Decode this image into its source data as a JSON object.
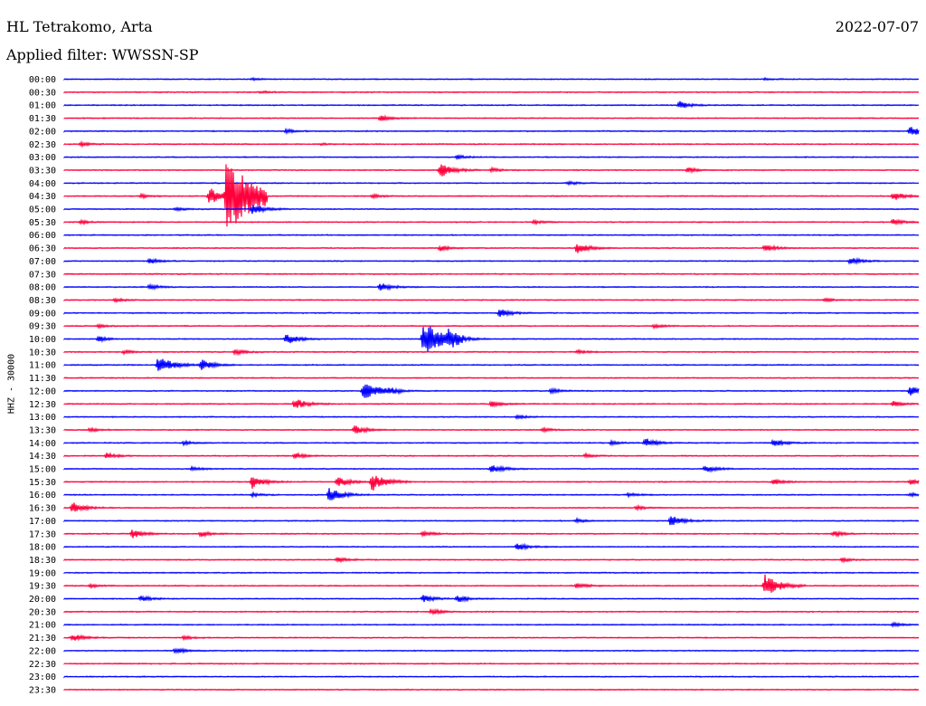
{
  "header": {
    "station": "HL Tetrakomo, Arta",
    "date": "2022-07-07",
    "filter": "Applied filter: WWSSN-SP"
  },
  "ylabel": "HHZ - 30000",
  "colors": {
    "odd": "#0000ff",
    "even": "#ff003c",
    "text": "#000000"
  },
  "chart_data": {
    "type": "line",
    "title": "",
    "xlabel": "",
    "ylabel": "HHZ - 30000",
    "grid": false,
    "traces": [
      {
        "label": "00:00",
        "events": [
          [
            0.22,
            1
          ],
          [
            0.82,
            1
          ]
        ]
      },
      {
        "label": "00:30",
        "events": [
          [
            0.23,
            1.2
          ]
        ]
      },
      {
        "label": "01:00",
        "events": [
          [
            0.72,
            4
          ]
        ]
      },
      {
        "label": "01:30",
        "events": [
          [
            0.37,
            3
          ]
        ]
      },
      {
        "label": "02:00",
        "events": [
          [
            0.26,
            2
          ],
          [
            0.99,
            6
          ]
        ]
      },
      {
        "label": "02:30",
        "events": [
          [
            0.02,
            2
          ],
          [
            0.3,
            1
          ]
        ]
      },
      {
        "label": "03:00",
        "events": [
          [
            0.46,
            2
          ]
        ]
      },
      {
        "label": "03:30",
        "events": [
          [
            0.44,
            8
          ],
          [
            0.5,
            2
          ],
          [
            0.73,
            3
          ]
        ]
      },
      {
        "label": "04:00",
        "events": [
          [
            0.59,
            2
          ]
        ]
      },
      {
        "label": "04:30",
        "events": [
          [
            0.09,
            2
          ],
          [
            0.17,
            10
          ],
          [
            0.19,
            40
          ],
          [
            0.36,
            2
          ],
          [
            0.97,
            5
          ]
        ]
      },
      {
        "label": "05:00",
        "events": [
          [
            0.13,
            2
          ],
          [
            0.22,
            6
          ]
        ]
      },
      {
        "label": "05:30",
        "events": [
          [
            0.02,
            2
          ],
          [
            0.55,
            2
          ],
          [
            0.97,
            3
          ]
        ]
      },
      {
        "label": "06:00",
        "events": []
      },
      {
        "label": "06:30",
        "events": [
          [
            0.44,
            3
          ],
          [
            0.6,
            6
          ],
          [
            0.82,
            4
          ]
        ]
      },
      {
        "label": "07:00",
        "events": [
          [
            0.1,
            3
          ],
          [
            0.92,
            4
          ]
        ]
      },
      {
        "label": "07:30",
        "events": []
      },
      {
        "label": "08:00",
        "events": [
          [
            0.1,
            3
          ],
          [
            0.37,
            5
          ]
        ]
      },
      {
        "label": "08:30",
        "events": [
          [
            0.06,
            2
          ],
          [
            0.89,
            2
          ]
        ]
      },
      {
        "label": "09:00",
        "events": [
          [
            0.51,
            5
          ]
        ]
      },
      {
        "label": "09:30",
        "events": [
          [
            0.04,
            2
          ],
          [
            0.69,
            2
          ]
        ]
      },
      {
        "label": "10:00",
        "events": [
          [
            0.04,
            3
          ],
          [
            0.26,
            6
          ],
          [
            0.42,
            20
          ],
          [
            0.45,
            8
          ]
        ]
      },
      {
        "label": "10:30",
        "events": [
          [
            0.07,
            2
          ],
          [
            0.2,
            3
          ],
          [
            0.6,
            2
          ]
        ]
      },
      {
        "label": "11:00",
        "events": [
          [
            0.11,
            10
          ],
          [
            0.16,
            6
          ]
        ]
      },
      {
        "label": "11:30",
        "events": []
      },
      {
        "label": "12:00",
        "events": [
          [
            0.35,
            12
          ],
          [
            0.38,
            3
          ],
          [
            0.57,
            3
          ],
          [
            0.99,
            5
          ]
        ]
      },
      {
        "label": "12:30",
        "events": [
          [
            0.27,
            6
          ],
          [
            0.5,
            3
          ],
          [
            0.97,
            3
          ]
        ]
      },
      {
        "label": "13:00",
        "events": [
          [
            0.53,
            2
          ]
        ]
      },
      {
        "label": "13:30",
        "events": [
          [
            0.03,
            2
          ],
          [
            0.34,
            5
          ],
          [
            0.56,
            2
          ]
        ]
      },
      {
        "label": "14:00",
        "events": [
          [
            0.14,
            2
          ],
          [
            0.64,
            2
          ],
          [
            0.68,
            5
          ],
          [
            0.83,
            4
          ]
        ]
      },
      {
        "label": "14:30",
        "events": [
          [
            0.05,
            3
          ],
          [
            0.27,
            3
          ],
          [
            0.61,
            2
          ]
        ]
      },
      {
        "label": "15:00",
        "events": [
          [
            0.15,
            2
          ],
          [
            0.5,
            5
          ],
          [
            0.75,
            4
          ]
        ]
      },
      {
        "label": "15:30",
        "events": [
          [
            0.22,
            7
          ],
          [
            0.32,
            6
          ],
          [
            0.36,
            10
          ],
          [
            0.83,
            3
          ],
          [
            0.99,
            3
          ]
        ]
      },
      {
        "label": "16:00",
        "events": [
          [
            0.22,
            2
          ],
          [
            0.31,
            8
          ],
          [
            0.66,
            2
          ],
          [
            0.99,
            2
          ]
        ]
      },
      {
        "label": "16:30",
        "events": [
          [
            0.01,
            6
          ],
          [
            0.67,
            2
          ]
        ]
      },
      {
        "label": "17:00",
        "events": [
          [
            0.6,
            2
          ],
          [
            0.71,
            6
          ]
        ]
      },
      {
        "label": "17:30",
        "events": [
          [
            0.08,
            5
          ],
          [
            0.16,
            3
          ],
          [
            0.42,
            3
          ],
          [
            0.9,
            3
          ]
        ]
      },
      {
        "label": "18:00",
        "events": [
          [
            0.53,
            4
          ]
        ]
      },
      {
        "label": "18:30",
        "events": [
          [
            0.32,
            3
          ],
          [
            0.91,
            2
          ]
        ]
      },
      {
        "label": "19:00",
        "events": []
      },
      {
        "label": "19:30",
        "events": [
          [
            0.03,
            2
          ],
          [
            0.6,
            3
          ],
          [
            0.82,
            12
          ]
        ]
      },
      {
        "label": "20:00",
        "events": [
          [
            0.09,
            3
          ],
          [
            0.42,
            4
          ],
          [
            0.46,
            4
          ]
        ]
      },
      {
        "label": "20:30",
        "events": [
          [
            0.43,
            3
          ]
        ]
      },
      {
        "label": "21:00",
        "events": [
          [
            0.97,
            2
          ]
        ]
      },
      {
        "label": "21:30",
        "events": [
          [
            0.01,
            4
          ],
          [
            0.14,
            2
          ]
        ]
      },
      {
        "label": "22:00",
        "events": [
          [
            0.13,
            3
          ]
        ]
      },
      {
        "label": "22:30",
        "events": []
      },
      {
        "label": "23:00",
        "events": []
      },
      {
        "label": "23:30",
        "events": []
      }
    ]
  }
}
